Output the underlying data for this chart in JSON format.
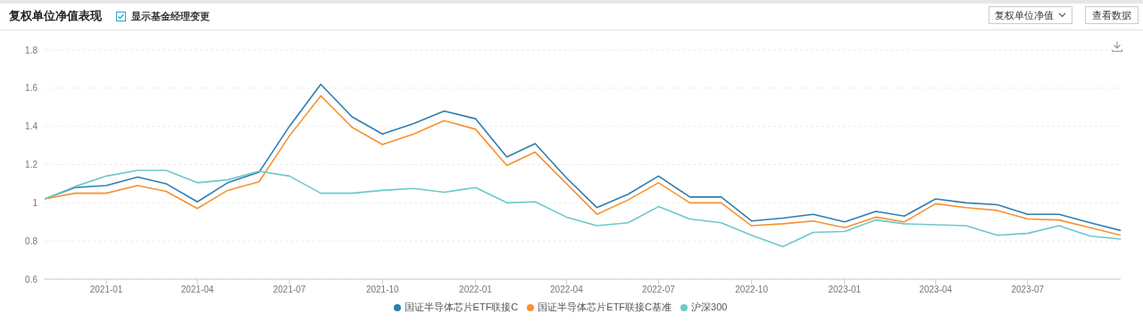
{
  "chart_data": {
    "type": "line",
    "title": "复权单位净值表现",
    "annotations": [
      "显示基金经理变更",
      "复权单位净值",
      "查看数据"
    ],
    "x": [
      "2020-11",
      "2020-12",
      "2021-01",
      "2021-02",
      "2021-03",
      "2021-04",
      "2021-05",
      "2021-06",
      "2021-07",
      "2021-08",
      "2021-09",
      "2021-10",
      "2021-11",
      "2021-12",
      "2022-01",
      "2022-02",
      "2022-03",
      "2022-04",
      "2022-05",
      "2022-06",
      "2022-07",
      "2022-08",
      "2022-09",
      "2022-10",
      "2022-11",
      "2022-12",
      "2023-01",
      "2023-02",
      "2023-03",
      "2023-04",
      "2023-05",
      "2023-06",
      "2023-07",
      "2023-08",
      "2023-09",
      "2023-10"
    ],
    "series": [
      {
        "name": "国证半导体芯片ETF联接C",
        "color": "#2e7fad",
        "values": [
          1.02,
          1.08,
          1.09,
          1.135,
          1.1,
          1.005,
          1.105,
          1.16,
          1.4,
          1.62,
          1.45,
          1.36,
          1.415,
          1.48,
          1.44,
          1.24,
          1.31,
          1.13,
          0.975,
          1.045,
          1.14,
          1.03,
          1.03,
          0.905,
          0.92,
          0.94,
          0.9,
          0.955,
          0.93,
          1.02,
          1.0,
          0.99,
          0.94,
          0.94,
          0.895,
          0.855
        ]
      },
      {
        "name": "国证半导体芯片ETF联接C基准",
        "color": "#f7922f",
        "values": [
          1.02,
          1.05,
          1.05,
          1.09,
          1.06,
          0.97,
          1.065,
          1.11,
          1.35,
          1.56,
          1.395,
          1.305,
          1.36,
          1.43,
          1.385,
          1.195,
          1.265,
          1.1,
          0.94,
          1.015,
          1.105,
          1.0,
          1.0,
          0.88,
          0.89,
          0.905,
          0.87,
          0.925,
          0.9,
          0.995,
          0.975,
          0.96,
          0.915,
          0.91,
          0.87,
          0.83
        ]
      },
      {
        "name": "沪深300",
        "color": "#6cc9c8",
        "values": [
          1.02,
          1.085,
          1.14,
          1.17,
          1.17,
          1.105,
          1.12,
          1.165,
          1.14,
          1.05,
          1.05,
          1.065,
          1.075,
          1.055,
          1.08,
          1.0,
          1.005,
          0.925,
          0.88,
          0.895,
          0.98,
          0.915,
          0.895,
          0.83,
          0.77,
          0.845,
          0.85,
          0.91,
          0.89,
          0.885,
          0.88,
          0.83,
          0.84,
          0.88,
          0.825,
          0.81
        ]
      }
    ],
    "xlim": [
      "2020-11",
      "2023-10"
    ],
    "xticks": [
      "2021-01",
      "2021-04",
      "2021-07",
      "2021-10",
      "2022-01",
      "2022-04",
      "2022-07",
      "2022-10",
      "2023-01",
      "2023-04",
      "2023-07"
    ],
    "ylim": [
      0.6,
      1.8
    ],
    "yticks": [
      0.6,
      0.8,
      1,
      1.2,
      1.4,
      1.6,
      1.8
    ],
    "grid": "y",
    "legend": "bottom",
    "marker": "none",
    "line_style": "solid"
  }
}
